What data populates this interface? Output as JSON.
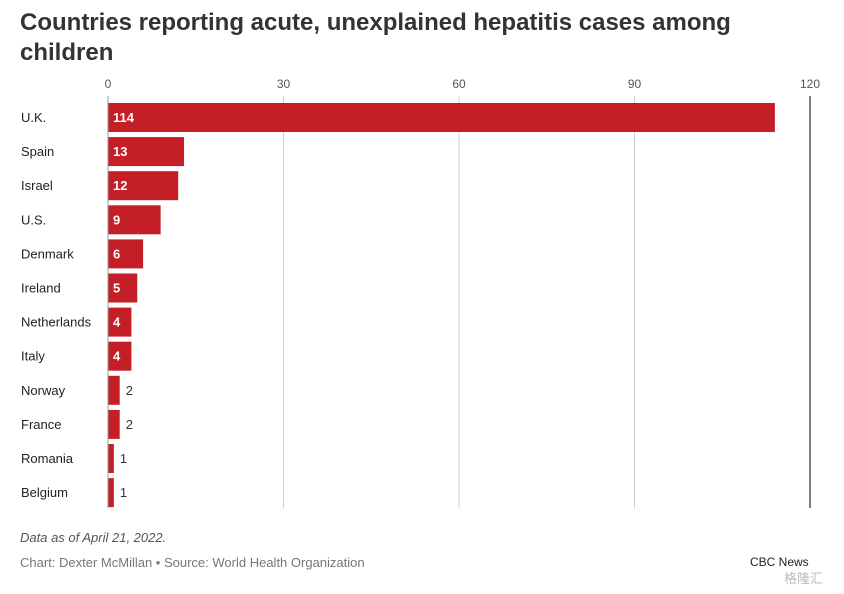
{
  "header": {
    "title": "Countries reporting acute, unexplained hepatitis cases among children"
  },
  "chart_data": {
    "type": "bar",
    "orientation": "horizontal",
    "title": "Countries reporting acute, unexplained hepatitis cases among children",
    "categories": [
      "U.K.",
      "Spain",
      "Israel",
      "U.S.",
      "Denmark",
      "Ireland",
      "Netherlands",
      "Italy",
      "Norway",
      "France",
      "Romania",
      "Belgium"
    ],
    "values": [
      114,
      13,
      12,
      9,
      6,
      5,
      4,
      4,
      2,
      2,
      1,
      1
    ],
    "xlim": [
      0,
      120
    ],
    "xticks": [
      0,
      30,
      60,
      90,
      120
    ],
    "grid": true,
    "bar_color": "#c41e27",
    "xlabel": "",
    "ylabel": ""
  },
  "footer": {
    "note": "Data as of April 21, 2022.",
    "credit": "Chart: Dexter McMillan • Source: World Health Organization",
    "brand": "CBC News",
    "watermark": "格隆汇"
  }
}
